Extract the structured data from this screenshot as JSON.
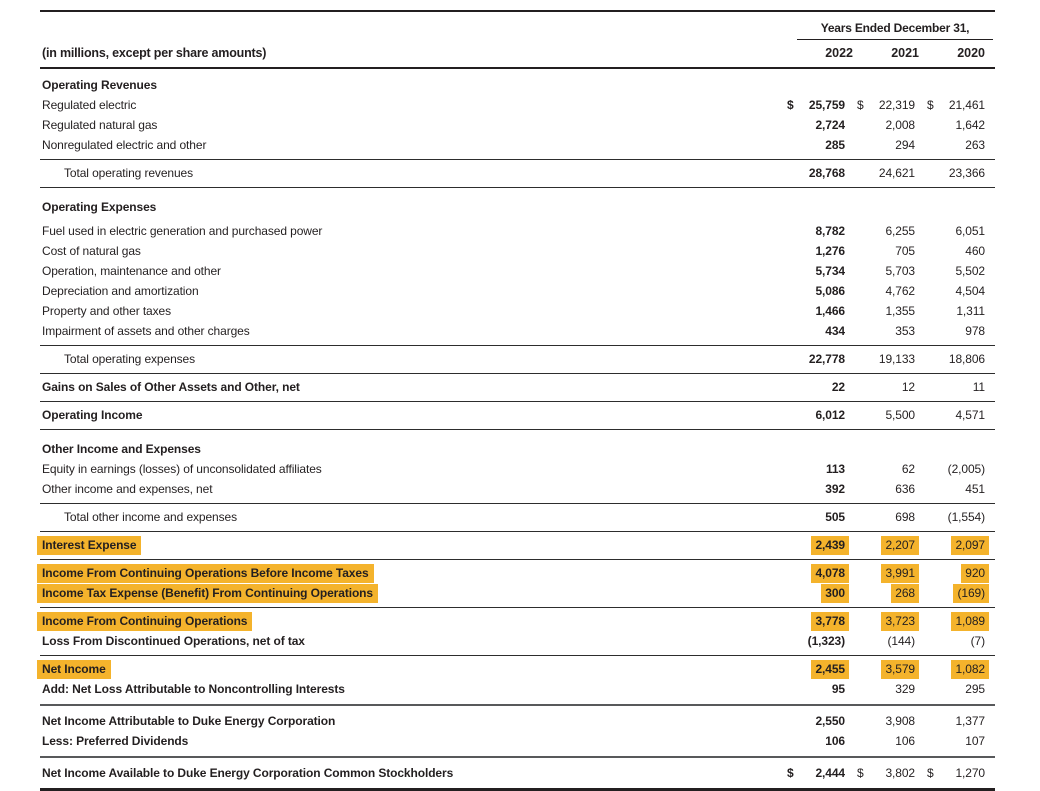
{
  "colors": {
    "highlight": "#F4B32C",
    "text": "#231f20"
  },
  "statement": {
    "units_note": "(in millions, except per share amounts)",
    "period_header": "Years Ended December 31,",
    "years": [
      "2022",
      "2021",
      "2020"
    ],
    "currency_symbol": "$",
    "rows": [
      {
        "type": "section",
        "label": "Operating Revenues"
      },
      {
        "type": "item",
        "label": "Regulated electric",
        "dollar": true,
        "values": [
          "25,759",
          "22,319",
          "21,461"
        ]
      },
      {
        "type": "item",
        "label": "Regulated natural gas",
        "values": [
          "2,724",
          "2,008",
          "1,642"
        ]
      },
      {
        "type": "item",
        "label": "Nonregulated electric and other",
        "values": [
          "285",
          "294",
          "263"
        ]
      },
      {
        "type": "rule"
      },
      {
        "type": "total",
        "label": "Total operating revenues",
        "values": [
          "28,768",
          "24,621",
          "23,366"
        ]
      },
      {
        "type": "rule"
      },
      {
        "type": "section",
        "label": "Operating Expenses",
        "gap": true
      },
      {
        "type": "item",
        "label": "Fuel used in electric generation and purchased power",
        "values": [
          "8,782",
          "6,255",
          "6,051"
        ]
      },
      {
        "type": "item",
        "label": "Cost of natural gas",
        "values": [
          "1,276",
          "705",
          "460"
        ]
      },
      {
        "type": "item",
        "label": "Operation, maintenance and other",
        "values": [
          "5,734",
          "5,703",
          "5,502"
        ]
      },
      {
        "type": "item",
        "label": "Depreciation and amortization",
        "values": [
          "5,086",
          "4,762",
          "4,504"
        ]
      },
      {
        "type": "item",
        "label": "Property and other taxes",
        "values": [
          "1,466",
          "1,355",
          "1,311"
        ]
      },
      {
        "type": "item",
        "label": "Impairment of assets and other charges",
        "values": [
          "434",
          "353",
          "978"
        ]
      },
      {
        "type": "rule"
      },
      {
        "type": "total",
        "label": "Total operating expenses",
        "values": [
          "22,778",
          "19,133",
          "18,806"
        ]
      },
      {
        "type": "rule"
      },
      {
        "type": "strong",
        "label": "Gains on Sales of Other Assets and Other, net",
        "values": [
          "22",
          "12",
          "11"
        ]
      },
      {
        "type": "rule"
      },
      {
        "type": "strong",
        "label": "Operating Income",
        "values": [
          "6,012",
          "5,500",
          "4,571"
        ]
      },
      {
        "type": "rule"
      },
      {
        "type": "section",
        "label": "Other Income and Expenses"
      },
      {
        "type": "item",
        "label": "Equity in earnings (losses) of unconsolidated affiliates",
        "values": [
          "113",
          "62",
          "(2,005)"
        ]
      },
      {
        "type": "item",
        "label": "Other income and expenses, net",
        "values": [
          "392",
          "636",
          "451"
        ]
      },
      {
        "type": "rule"
      },
      {
        "type": "total",
        "label": "Total other income and expenses",
        "values": [
          "505",
          "698",
          "(1,554)"
        ]
      },
      {
        "type": "rule"
      },
      {
        "type": "strong",
        "label": "Interest Expense",
        "highlight": true,
        "values": [
          "2,439",
          "2,207",
          "2,097"
        ]
      },
      {
        "type": "rule"
      },
      {
        "type": "strong",
        "label": "Income From Continuing Operations Before Income Taxes",
        "highlight": true,
        "values": [
          "4,078",
          "3,991",
          "920"
        ]
      },
      {
        "type": "strong",
        "label": "Income Tax Expense (Benefit) From Continuing Operations",
        "highlight": true,
        "values": [
          "300",
          "268",
          "(169)"
        ]
      },
      {
        "type": "rule"
      },
      {
        "type": "strong",
        "label": "Income From Continuing Operations",
        "highlight": true,
        "values": [
          "3,778",
          "3,723",
          "1,089"
        ]
      },
      {
        "type": "strong",
        "label": "Loss From Discontinued Operations, net of tax",
        "values": [
          "(1,323)",
          "(144)",
          "(7)"
        ]
      },
      {
        "type": "rule"
      },
      {
        "type": "strong",
        "label": "Net Income",
        "highlight": true,
        "values": [
          "2,455",
          "3,579",
          "1,082"
        ]
      },
      {
        "type": "strong",
        "label": "Add: Net Loss Attributable to Noncontrolling Interests",
        "values": [
          "95",
          "329",
          "295"
        ]
      },
      {
        "type": "rule",
        "weight": "thick"
      },
      {
        "type": "strong",
        "label": "Net Income Attributable to Duke Energy Corporation",
        "values": [
          "2,550",
          "3,908",
          "1,377"
        ]
      },
      {
        "type": "strong",
        "label": "Less: Preferred Dividends",
        "values": [
          "106",
          "106",
          "107"
        ]
      },
      {
        "type": "rule",
        "weight": "thick"
      },
      {
        "type": "strong",
        "label": "Net Income Available to Duke Energy Corporation Common Stockholders",
        "dollar": true,
        "values": [
          "2,444",
          "3,802",
          "1,270"
        ]
      }
    ]
  }
}
